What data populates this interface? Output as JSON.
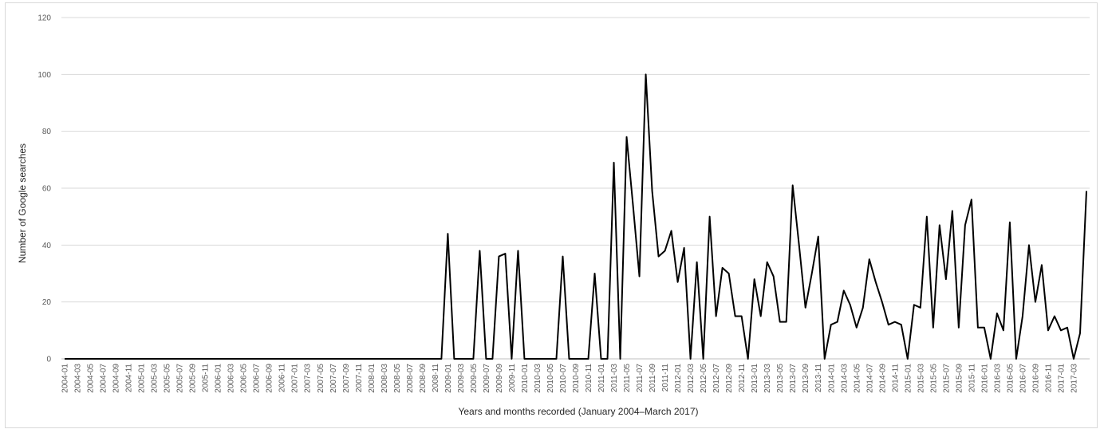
{
  "chart_data": {
    "type": "line",
    "title": "",
    "xlabel": "Years and months recorded (January 2004–March 2017)",
    "ylabel": "Number of Google searches",
    "ylim": [
      0,
      120
    ],
    "yticks": [
      0,
      20,
      40,
      60,
      80,
      100,
      120
    ],
    "grid": true,
    "legend": "none",
    "line_color": "#000000",
    "x_tick_labels": [
      "2004-01",
      "2004-03",
      "2004-05",
      "2004-07",
      "2004-09",
      "2004-11",
      "2005-01",
      "2005-03",
      "2005-05",
      "2005-07",
      "2005-09",
      "2005-11",
      "2006-01",
      "2006-03",
      "2006-05",
      "2006-07",
      "2006-09",
      "2006-11",
      "2007-01",
      "2007-03",
      "2007-05",
      "2007-07",
      "2007-09",
      "2007-11",
      "2008-01",
      "2008-03",
      "2008-05",
      "2008-07",
      "2008-09",
      "2008-11",
      "2009-01",
      "2009-03",
      "2009-05",
      "2009-07",
      "2009-09",
      "2009-11",
      "2010-01",
      "2010-03",
      "2010-05",
      "2010-07",
      "2010-09",
      "2010-11",
      "2011-01",
      "2011-03",
      "2011-05",
      "2011-07",
      "2011-09",
      "2011-11",
      "2012-01",
      "2012-03",
      "2012-05",
      "2012-07",
      "2012-09",
      "2012-11",
      "2013-01",
      "2013-03",
      "2013-05",
      "2013-07",
      "2013-09",
      "2013-11",
      "2014-01",
      "2014-03",
      "2014-05",
      "2014-07",
      "2014-09",
      "2014-11",
      "2015-01",
      "2015-03",
      "2015-05",
      "2015-07",
      "2015-09",
      "2015-11",
      "2016-01",
      "2016-03",
      "2016-05",
      "2016-07",
      "2016-09",
      "2016-11",
      "2017-01",
      "2017-03"
    ],
    "series": [
      {
        "values": [
          0,
          0,
          0,
          0,
          0,
          0,
          0,
          0,
          0,
          0,
          0,
          0,
          0,
          0,
          0,
          0,
          0,
          0,
          0,
          0,
          0,
          0,
          0,
          0,
          0,
          0,
          0,
          0,
          0,
          0,
          0,
          0,
          0,
          0,
          0,
          0,
          0,
          0,
          0,
          0,
          0,
          0,
          0,
          0,
          0,
          0,
          0,
          0,
          0,
          0,
          0,
          0,
          0,
          0,
          0,
          0,
          0,
          0,
          0,
          0,
          44,
          0,
          0,
          0,
          0,
          38,
          0,
          0,
          36,
          37,
          0,
          38,
          0,
          0,
          0,
          0,
          0,
          0,
          36,
          0,
          0,
          0,
          0,
          30,
          0,
          0,
          69,
          0,
          78,
          54,
          29,
          100,
          59,
          36,
          38,
          45,
          27,
          39,
          0,
          34,
          0,
          50,
          15,
          32,
          30,
          15,
          15,
          0,
          28,
          15,
          34,
          29,
          13,
          13,
          61,
          40,
          18,
          30,
          43,
          0,
          12,
          13,
          24,
          19,
          11,
          18,
          35,
          27,
          20,
          12,
          13,
          12,
          0,
          19,
          18,
          50,
          11,
          47,
          28,
          52,
          11,
          47,
          56,
          11,
          11,
          0,
          16,
          10,
          48,
          0,
          15,
          40,
          20,
          33,
          10,
          15,
          10,
          11,
          0,
          9,
          59
        ]
      }
    ]
  }
}
